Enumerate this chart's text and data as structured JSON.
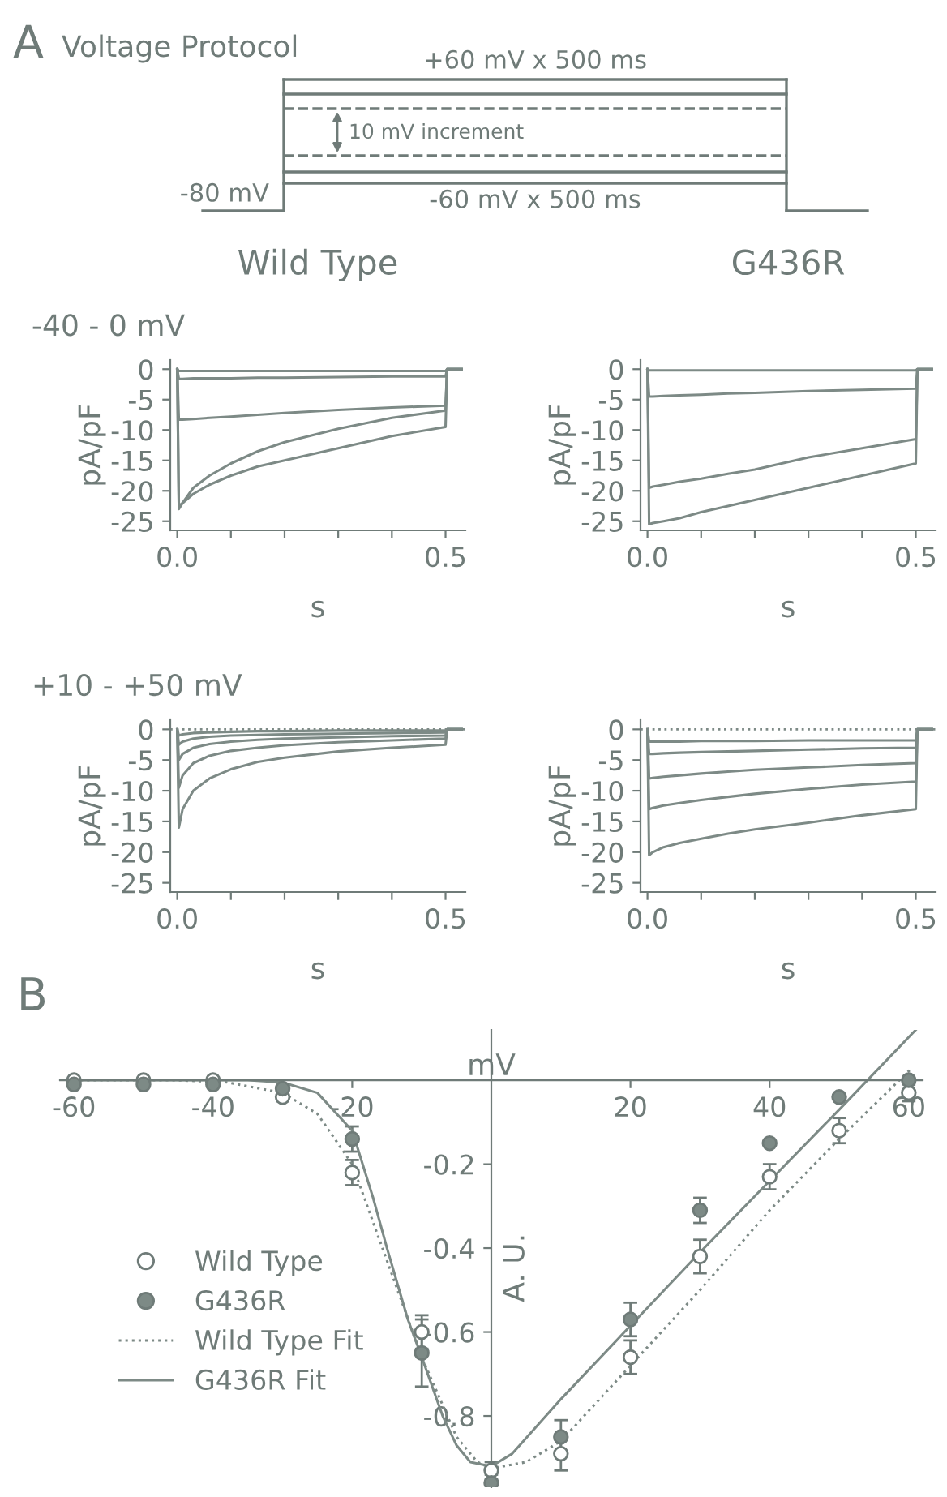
{
  "chart_data": [
    {
      "type": "other",
      "title": "Voltage Protocol",
      "annotations": [
        "A",
        "+60 mV x 500 ms",
        "10 mV increment",
        "-80 mV",
        "-60 mV x 500 ms"
      ]
    },
    {
      "type": "line",
      "title": "Wild Type",
      "annotations": [
        "-40 - 0 mV"
      ],
      "xlabel": "s",
      "ylabel": "pA/pF",
      "xlim": [
        -0.013,
        0.537
      ],
      "ylim": [
        -26.5,
        1.5
      ],
      "xticks": [
        {
          "value": 0,
          "label": "0.0"
        },
        {
          "value": 0.1,
          "label": null
        },
        {
          "value": 0.2,
          "label": null
        },
        {
          "value": 0.3,
          "label": null
        },
        {
          "value": 0.4,
          "label": null
        },
        {
          "value": 0.5,
          "label": "0.5"
        }
      ],
      "yticks": [
        0,
        -5,
        -10,
        -15,
        -20,
        -25
      ],
      "x": [
        0,
        0.003,
        0.01,
        0.03,
        0.06,
        0.1,
        0.15,
        0.2,
        0.3,
        0.4,
        0.5,
        0.503,
        0.53
      ],
      "series": [
        {
          "color": "#7d8a86",
          "values": [
            0,
            -0.3,
            -0.3,
            -0.3,
            -0.3,
            -0.3,
            -0.3,
            -0.3,
            -0.3,
            -0.3,
            -0.3,
            0,
            0
          ]
        },
        {
          "color": "#7d8a86",
          "values": [
            0,
            -1.6,
            -1.6,
            -1.5,
            -1.5,
            -1.5,
            -1.4,
            -1.4,
            -1.3,
            -1.2,
            -1.2,
            0,
            0
          ]
        },
        {
          "color": "#7d8a86",
          "values": [
            0,
            -8.3,
            -8.3,
            -8.2,
            -8,
            -7.8,
            -7.5,
            -7.2,
            -6.7,
            -6.3,
            -6,
            0,
            0
          ]
        },
        {
          "color": "#7d8a86",
          "values": [
            0,
            -23,
            -22,
            -19.5,
            -17.5,
            -15.5,
            -13.5,
            -12,
            -9.8,
            -8,
            -6.8,
            0,
            0
          ]
        },
        {
          "color": "#7d8a86",
          "values": [
            0,
            -22.5,
            -22,
            -20.5,
            -19,
            -17.5,
            -16,
            -15,
            -13,
            -11,
            -9.5,
            0,
            0
          ]
        }
      ]
    },
    {
      "type": "line",
      "title": "G436R",
      "xlabel": "s",
      "ylabel": "pA/pF",
      "xlim": [
        -0.013,
        0.537
      ],
      "ylim": [
        -26.5,
        1.5
      ],
      "xticks": [
        {
          "value": 0,
          "label": "0.0"
        },
        {
          "value": 0.1,
          "label": null
        },
        {
          "value": 0.2,
          "label": null
        },
        {
          "value": 0.3,
          "label": null
        },
        {
          "value": 0.4,
          "label": null
        },
        {
          "value": 0.5,
          "label": "0.5"
        }
      ],
      "yticks": [
        0,
        -5,
        -10,
        -15,
        -20,
        -25
      ],
      "x": [
        0,
        0.003,
        0.01,
        0.03,
        0.06,
        0.1,
        0.15,
        0.2,
        0.3,
        0.4,
        0.5,
        0.503,
        0.53
      ],
      "series": [
        {
          "color": "#7d8a86",
          "values": [
            0,
            -0.2,
            -0.2,
            -0.2,
            -0.2,
            -0.2,
            -0.2,
            -0.2,
            -0.2,
            -0.2,
            -0.2,
            0,
            0
          ]
        },
        {
          "color": "#7d8a86",
          "values": [
            0,
            -4.5,
            -4.5,
            -4.4,
            -4.3,
            -4.2,
            -4,
            -3.9,
            -3.6,
            -3.4,
            -3.2,
            0,
            0
          ]
        },
        {
          "color": "#7d8a86",
          "values": [
            0,
            -19.5,
            -19.3,
            -19,
            -18.5,
            -18,
            -17.2,
            -16.5,
            -14.5,
            -13,
            -11.5,
            0,
            0
          ]
        },
        {
          "color": "#7d8a86",
          "values": [
            0,
            -25.5,
            -25.3,
            -25,
            -24.5,
            -23.5,
            -22.5,
            -21.5,
            -19.5,
            -17.5,
            -15.5,
            0,
            0
          ]
        }
      ]
    },
    {
      "type": "line",
      "annotations": [
        "+10 - +50 mV"
      ],
      "xlabel": "s",
      "ylabel": "pA/pF",
      "xlim": [
        -0.013,
        0.537
      ],
      "ylim": [
        -26.5,
        1.5
      ],
      "xticks": [
        {
          "value": 0,
          "label": "0.0"
        },
        {
          "value": 0.1,
          "label": null
        },
        {
          "value": 0.2,
          "label": null
        },
        {
          "value": 0.3,
          "label": null
        },
        {
          "value": 0.4,
          "label": null
        },
        {
          "value": 0.5,
          "label": "0.5"
        }
      ],
      "yticks": [
        0,
        -5,
        -10,
        -15,
        -20,
        -25
      ],
      "ref_lines": [
        {
          "axis": "y",
          "value": 0,
          "line_style": "dotted",
          "color": "#7d8a86"
        }
      ],
      "x": [
        0,
        0.003,
        0.01,
        0.03,
        0.06,
        0.1,
        0.15,
        0.2,
        0.3,
        0.4,
        0.5,
        0.503,
        0.53
      ],
      "series": [
        {
          "color": "#7d8a86",
          "values": [
            0,
            -16,
            -13,
            -10,
            -8,
            -6.5,
            -5.3,
            -4.6,
            -3.6,
            -3,
            -2.5,
            0,
            0
          ]
        },
        {
          "color": "#7d8a86",
          "values": [
            0,
            -9.5,
            -7.5,
            -5.5,
            -4.3,
            -3.5,
            -3,
            -2.6,
            -2.1,
            -1.8,
            -1.5,
            0,
            0
          ]
        },
        {
          "color": "#7d8a86",
          "values": [
            0,
            -5,
            -4,
            -3,
            -2.4,
            -2,
            -1.7,
            -1.5,
            -1.3,
            -1.1,
            -1,
            0,
            0
          ]
        },
        {
          "color": "#7d8a86",
          "values": [
            0,
            -2.5,
            -2,
            -1.5,
            -1.2,
            -1,
            -0.9,
            -0.8,
            -0.7,
            -0.6,
            -0.5,
            0,
            0
          ]
        },
        {
          "color": "#7d8a86",
          "values": [
            0,
            -1,
            -0.8,
            -0.6,
            -0.5,
            -0.4,
            -0.3,
            -0.3,
            -0.2,
            -0.2,
            -0.2,
            0,
            0
          ]
        }
      ]
    },
    {
      "type": "line",
      "xlabel": "s",
      "ylabel": "pA/pF",
      "xlim": [
        -0.013,
        0.537
      ],
      "ylim": [
        -26.5,
        1.5
      ],
      "xticks": [
        {
          "value": 0,
          "label": "0.0"
        },
        {
          "value": 0.1,
          "label": null
        },
        {
          "value": 0.2,
          "label": null
        },
        {
          "value": 0.3,
          "label": null
        },
        {
          "value": 0.4,
          "label": null
        },
        {
          "value": 0.5,
          "label": "0.5"
        }
      ],
      "yticks": [
        0,
        -5,
        -10,
        -15,
        -20,
        -25
      ],
      "ref_lines": [
        {
          "axis": "y",
          "value": 0,
          "line_style": "dotted",
          "color": "#7d8a86"
        }
      ],
      "x": [
        0,
        0.003,
        0.01,
        0.03,
        0.06,
        0.1,
        0.15,
        0.2,
        0.3,
        0.4,
        0.5,
        0.503,
        0.53
      ],
      "series": [
        {
          "color": "#7d8a86",
          "values": [
            0,
            -2,
            -2,
            -2,
            -2,
            -1.9,
            -1.9,
            -1.9,
            -1.8,
            -1.8,
            -1.8,
            0,
            0
          ]
        },
        {
          "color": "#7d8a86",
          "values": [
            0,
            -4,
            -4,
            -3.9,
            -3.8,
            -3.7,
            -3.6,
            -3.5,
            -3.3,
            -3.1,
            -3,
            0,
            0
          ]
        },
        {
          "color": "#7d8a86",
          "values": [
            0,
            -8,
            -7.9,
            -7.7,
            -7.5,
            -7.2,
            -6.9,
            -6.6,
            -6.2,
            -5.8,
            -5.5,
            0,
            0
          ]
        },
        {
          "color": "#7d8a86",
          "values": [
            0,
            -13,
            -12.8,
            -12.4,
            -12,
            -11.5,
            -11,
            -10.5,
            -9.7,
            -9,
            -8.5,
            0,
            0
          ]
        },
        {
          "color": "#7d8a86",
          "values": [
            0,
            -20.5,
            -20,
            -19.2,
            -18.5,
            -17.8,
            -17,
            -16.3,
            -15.2,
            -14,
            -13,
            0,
            0
          ]
        }
      ]
    },
    {
      "type": "line",
      "annotations": [
        "B"
      ],
      "xlabel": "mV",
      "ylabel": "A. U.",
      "xlim": [
        -62,
        62
      ],
      "ylim": [
        -0.97,
        0.12
      ],
      "xticks": [
        -60,
        -40,
        -20,
        20,
        40,
        60
      ],
      "yticks": [
        -0.2,
        -0.4,
        -0.6,
        -0.8
      ],
      "legend": "left",
      "series": [
        {
          "name": "Wild Type",
          "type": "scatter",
          "marker": "circle",
          "color": "#ffffff",
          "x": [
            -60,
            -50,
            -40,
            -30,
            -20,
            -10,
            0,
            10,
            20,
            30,
            40,
            50,
            60
          ],
          "values": [
            0,
            0,
            0,
            -0.04,
            -0.22,
            -0.6,
            -0.93,
            -0.89,
            -0.66,
            -0.42,
            -0.23,
            -0.12,
            -0.03
          ],
          "errors": [
            null,
            null,
            null,
            0.01,
            0.03,
            0.04,
            0.02,
            0.04,
            0.04,
            0.04,
            0.03,
            0.03,
            0.02
          ]
        },
        {
          "name": "G436R",
          "type": "scatter",
          "marker": "circle",
          "color": "#7d8a86",
          "x": [
            -60,
            -50,
            -40,
            -30,
            -20,
            -10,
            0,
            10,
            20,
            30,
            40,
            50,
            60
          ],
          "values": [
            -0.01,
            -0.01,
            -0.01,
            -0.02,
            -0.14,
            -0.65,
            -0.96,
            -0.85,
            -0.57,
            -0.31,
            -0.15,
            -0.04,
            0
          ],
          "errors": [
            null,
            null,
            null,
            null,
            0.03,
            0.08,
            0.02,
            0.04,
            0.04,
            0.03,
            null,
            null,
            null
          ]
        },
        {
          "name": "Wild Type Fit",
          "type": "line",
          "line_style": "dotted",
          "color": "#7d8a86",
          "x": [
            -60,
            -45,
            -38,
            -30,
            -25,
            -20,
            -15,
            -10,
            -5,
            -2,
            0,
            5,
            10,
            20,
            30,
            40,
            50,
            60.5
          ],
          "values": [
            0,
            0,
            -0.005,
            -0.03,
            -0.08,
            -0.2,
            -0.43,
            -0.66,
            -0.85,
            -0.91,
            -0.925,
            -0.91,
            -0.86,
            -0.68,
            -0.5,
            -0.31,
            -0.14,
            0.03
          ]
        },
        {
          "name": "G436R Fit",
          "type": "line",
          "line_style": "solid",
          "color": "#7d8a86",
          "x": [
            -60,
            -35,
            -30,
            -25,
            -20,
            -17,
            -15,
            -12,
            -10,
            -7,
            -5,
            -3,
            0,
            3,
            10,
            20,
            30,
            40,
            50,
            61
          ],
          "values": [
            0,
            0,
            -0.005,
            -0.03,
            -0.12,
            -0.28,
            -0.4,
            -0.57,
            -0.66,
            -0.8,
            -0.87,
            -0.91,
            -0.92,
            -0.89,
            -0.76,
            -0.585,
            -0.41,
            -0.24,
            -0.07,
            0.12
          ]
        }
      ]
    }
  ]
}
